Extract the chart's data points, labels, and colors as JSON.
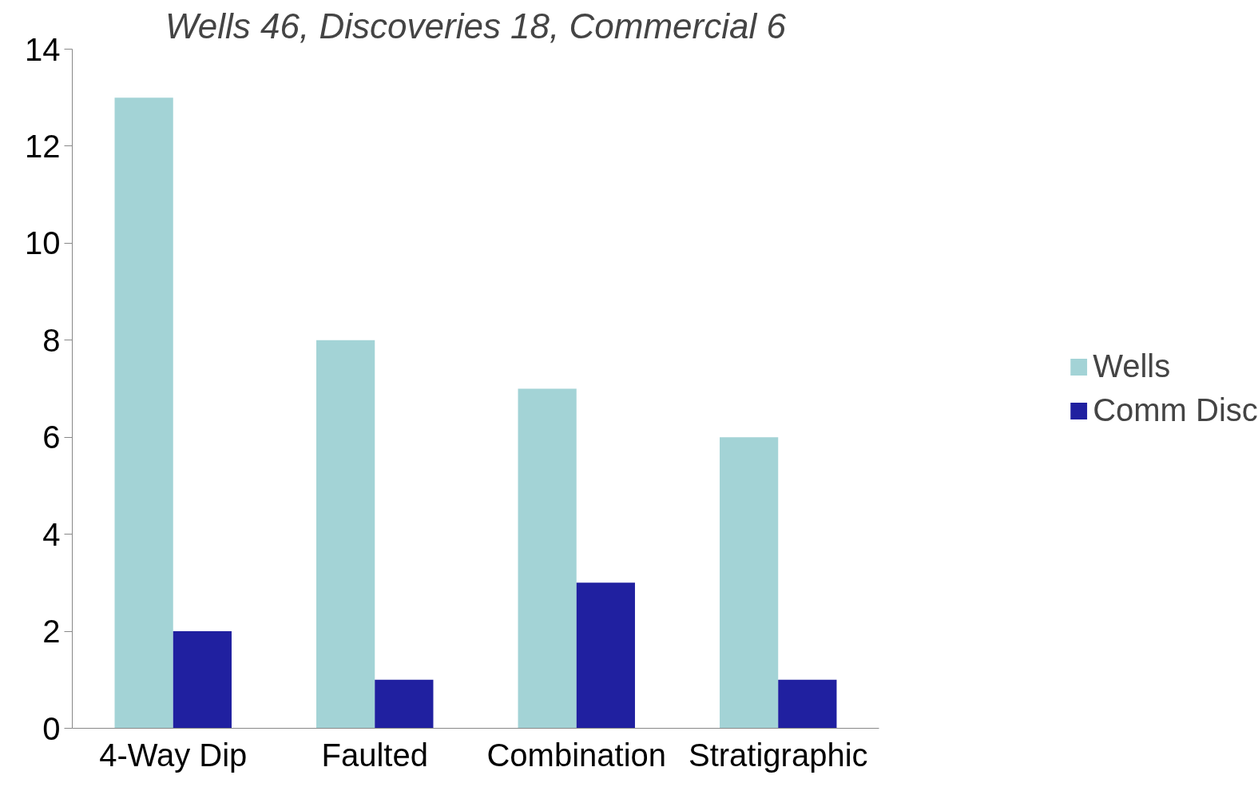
{
  "chart_data": {
    "type": "bar",
    "title": "Wells 46, Discoveries 18, Commercial 6",
    "categories": [
      "4-Way Dip",
      "Faulted",
      "Combination",
      "Stratigraphic"
    ],
    "series": [
      {
        "name": "Wells",
        "color": "#a3d3d6",
        "values": [
          13,
          8,
          7,
          6
        ]
      },
      {
        "name": "Comm Disc",
        "color": "#2020a0",
        "values": [
          2,
          1,
          3,
          1
        ]
      }
    ],
    "ylim": [
      0,
      14
    ],
    "yticks": [
      0,
      2,
      4,
      6,
      8,
      10,
      12,
      14
    ],
    "grid": false,
    "legend": "right"
  }
}
